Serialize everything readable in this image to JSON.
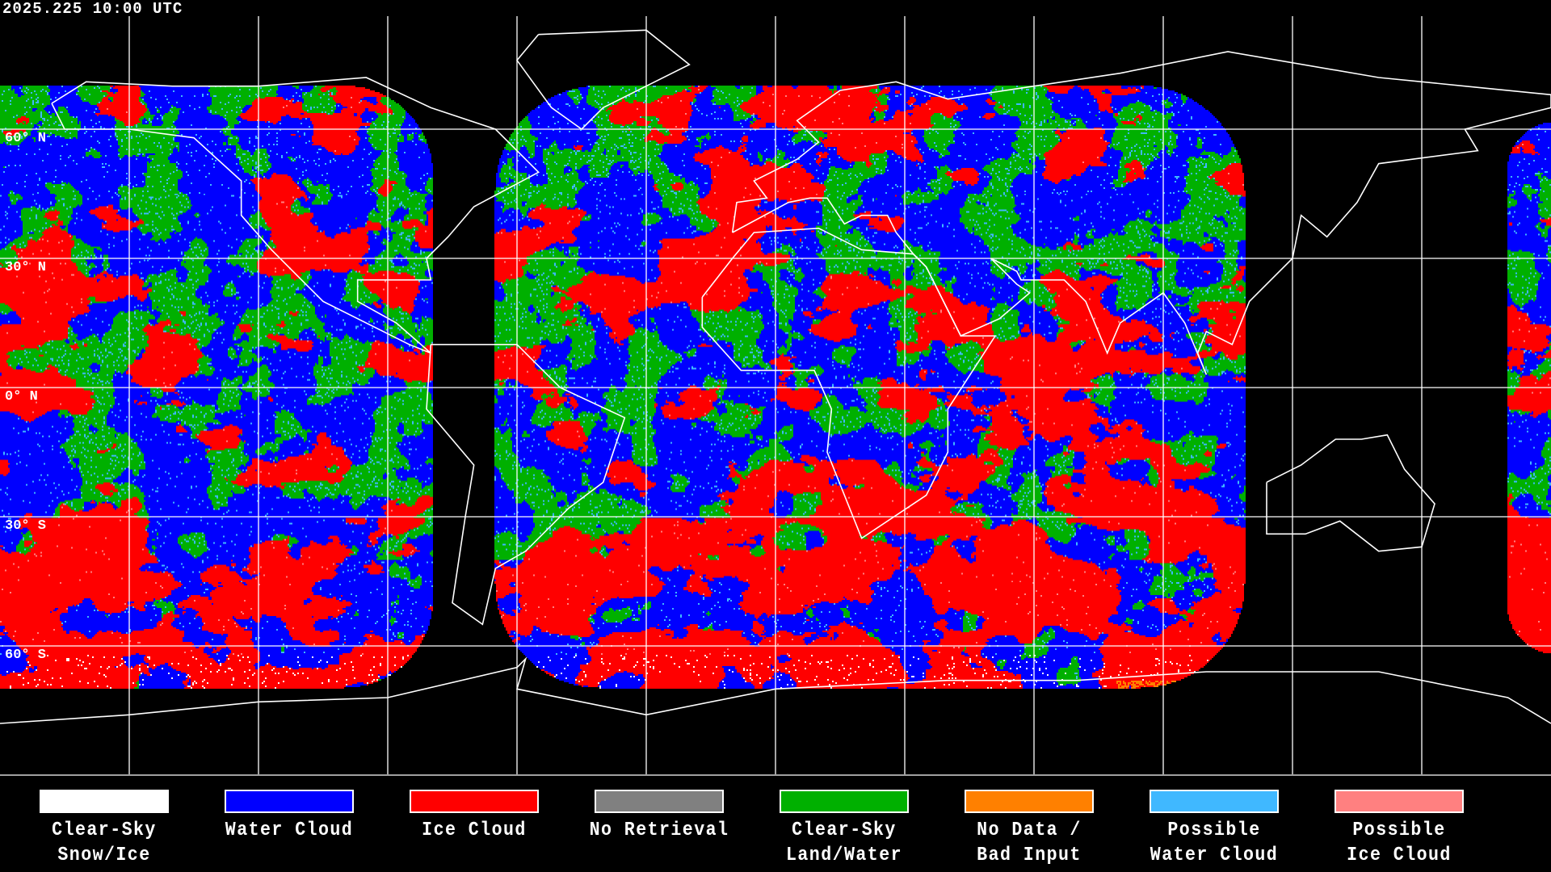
{
  "timestamp": "2025.225 10:00 UTC",
  "map": {
    "latitude_labels": [
      "60° N",
      "30° N",
      "0° N",
      "30° S",
      "60° S"
    ],
    "gridlines": {
      "longitude_step_deg": 30,
      "latitude_step_deg": 30
    },
    "colors": {
      "clear_snow": "#ffffff",
      "water_cloud": "#0000ff",
      "ice_cloud": "#ff0000",
      "no_retrieval": "#808080",
      "clear_land_water": "#00b000",
      "no_data": "#ff8000",
      "possible_water": "#40b8ff",
      "possible_ice": "#ff8080",
      "coastline": "#ffffff",
      "grid": "#ffffff"
    }
  },
  "legend": [
    {
      "line1": "Clear-Sky",
      "line2": "Snow/Ice",
      "color": "#ffffff"
    },
    {
      "line1": "Water Cloud",
      "line2": "",
      "color": "#0000ff"
    },
    {
      "line1": "Ice Cloud",
      "line2": "",
      "color": "#ff0000"
    },
    {
      "line1": "No Retrieval",
      "line2": "",
      "color": "#808080"
    },
    {
      "line1": "Clear-Sky",
      "line2": "Land/Water",
      "color": "#00b000"
    },
    {
      "line1": "No Data /",
      "line2": "Bad Input",
      "color": "#ff8000"
    },
    {
      "line1": "Possible",
      "line2": "Water Cloud",
      "color": "#40b8ff"
    },
    {
      "line1": "Possible",
      "line2": "Ice Cloud",
      "color": "#ff8080"
    }
  ]
}
